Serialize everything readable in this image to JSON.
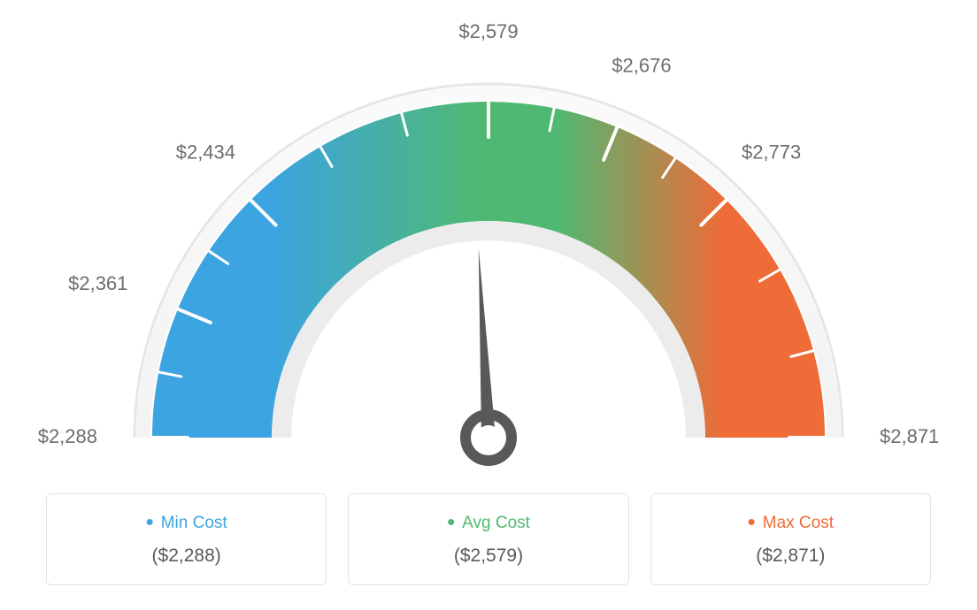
{
  "gauge": {
    "type": "gauge",
    "min_value": 2288,
    "max_value": 2871,
    "pointer_value": 2579,
    "tick_labels": [
      "$2,288",
      "$2,361",
      "$2,434",
      "$2,579",
      "$2,676",
      "$2,773",
      "$2,871"
    ],
    "tick_angles_deg": [
      180,
      157.5,
      135,
      90,
      67.5,
      45,
      0
    ],
    "tick_color": "#ffffff",
    "minor_tick_count": 5,
    "label_fontsize": 22,
    "label_color": "#6d6d6d",
    "arc_colors": {
      "start": "#3ca4e0",
      "mid": "#4fb973",
      "end": "#ef6b37"
    },
    "outer_ring_color": "#e6e6e6",
    "inner_ring_color": "#e6e6e6",
    "needle_color": "#595959",
    "background_color": "#ffffff",
    "outer_radius": 400,
    "inner_radius": 225,
    "band_outer": 380,
    "band_inner": 245
  },
  "cards": {
    "min": {
      "label": "Min Cost",
      "value": "($2,288)",
      "color": "#3ca4e0"
    },
    "avg": {
      "label": "Avg Cost",
      "value": "($2,579)",
      "color": "#4fb973"
    },
    "max": {
      "label": "Max Cost",
      "value": "($2,871)",
      "color": "#ef6b37"
    }
  }
}
